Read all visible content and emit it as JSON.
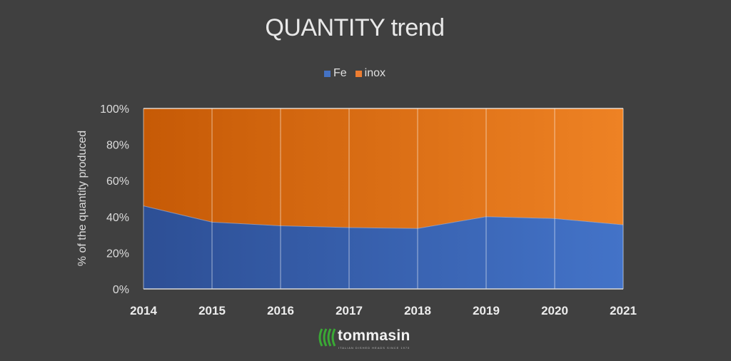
{
  "chart_data": {
    "type": "area",
    "stacked": "percent",
    "title": "QUANTITY trend",
    "xlabel": "",
    "ylabel": "% of the quantity produced",
    "x": [
      "2014",
      "2015",
      "2016",
      "2017",
      "2018",
      "2019",
      "2020",
      "2021"
    ],
    "series": [
      {
        "name": "Fe",
        "values": [
          46,
          37,
          35,
          34,
          33.5,
          40,
          39,
          35.5
        ],
        "color": "#3a66b8"
      },
      {
        "name": "inox",
        "values": [
          54,
          63,
          65,
          66,
          66.5,
          60,
          61,
          64.5
        ],
        "color": "#e0721a"
      }
    ],
    "ylim": [
      0,
      100
    ],
    "yticks": [
      "0%",
      "20%",
      "40%",
      "60%",
      "80%",
      "100%"
    ],
    "grid": "vertical",
    "legend": "top-center"
  },
  "logo": {
    "name": "tommasin",
    "tagline": "ITALIAN DISHED HEADS SINCE 1970"
  }
}
